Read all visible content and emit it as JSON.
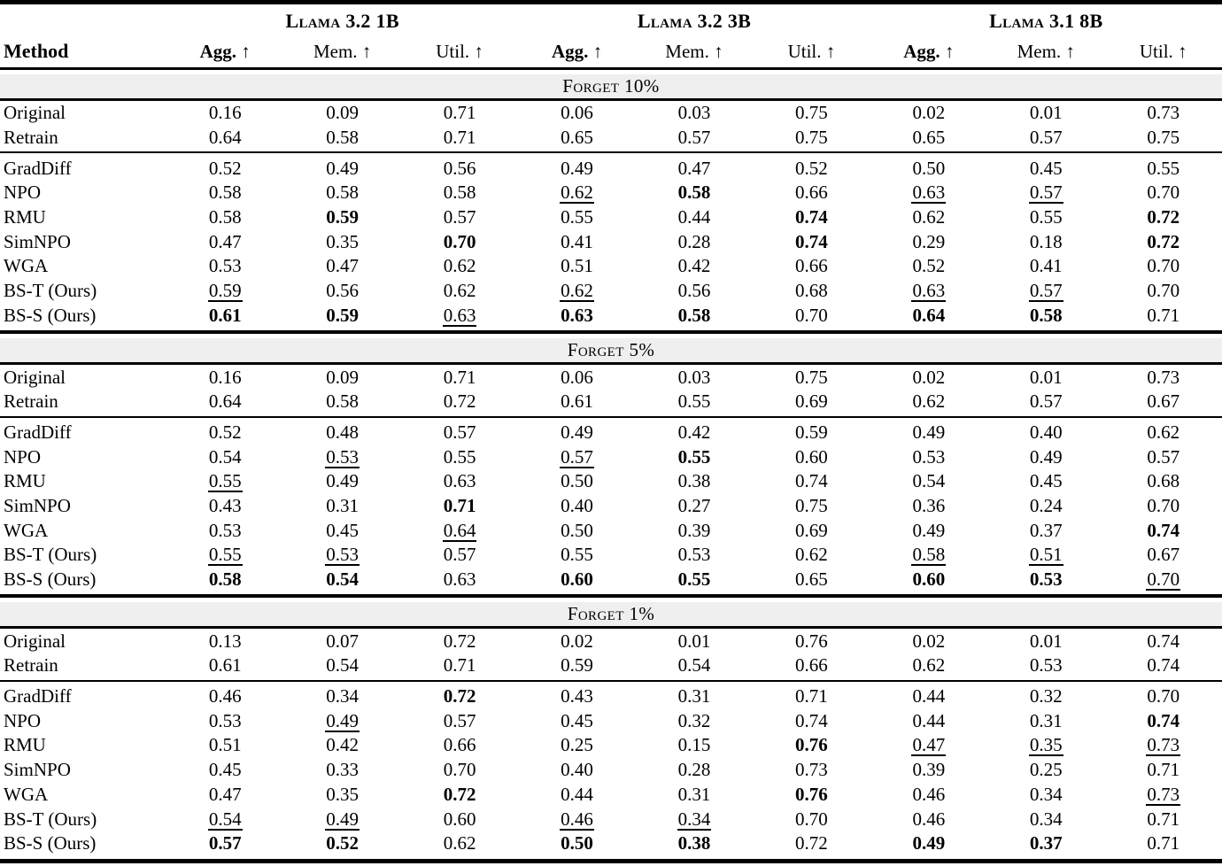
{
  "page": {
    "background": "#ffffff",
    "text_color": "#000000",
    "band_color": "#efefef"
  },
  "table": {
    "method_header": "Method",
    "groups": [
      {
        "label": "Llama 3.2 1B"
      },
      {
        "label": "Llama 3.2 3B"
      },
      {
        "label": "Llama 3.1 8B"
      }
    ],
    "metrics": [
      "Agg. ↑",
      "Mem. ↑",
      "Util. ↑"
    ],
    "metric_bold": [
      true,
      false,
      false
    ],
    "sections": [
      {
        "label": "Forget 10%",
        "reference_rows": [
          {
            "method": "Original",
            "values": [
              "0.16",
              "0.09",
              "0.71",
              "0.06",
              "0.03",
              "0.75",
              "0.02",
              "0.01",
              "0.73"
            ]
          },
          {
            "method": "Retrain",
            "values": [
              "0.64",
              "0.58",
              "0.71",
              "0.65",
              "0.57",
              "0.75",
              "0.65",
              "0.57",
              "0.75"
            ]
          }
        ],
        "method_rows": [
          {
            "method": "GradDiff",
            "values": [
              "0.52",
              "0.49",
              "0.56",
              "0.49",
              "0.47",
              "0.52",
              "0.50",
              "0.45",
              "0.55"
            ],
            "styles": [
              "",
              "",
              "",
              "",
              "",
              "",
              "",
              "",
              ""
            ]
          },
          {
            "method": "NPO",
            "values": [
              "0.58",
              "0.58",
              "0.58",
              "0.62",
              "0.58",
              "0.66",
              "0.63",
              "0.57",
              "0.70"
            ],
            "styles": [
              "",
              "",
              "",
              "u",
              "b",
              "",
              "u",
              "u",
              ""
            ]
          },
          {
            "method": "RMU",
            "values": [
              "0.58",
              "0.59",
              "0.57",
              "0.55",
              "0.44",
              "0.74",
              "0.62",
              "0.55",
              "0.72"
            ],
            "styles": [
              "",
              "b",
              "",
              "",
              "",
              "b",
              "",
              "",
              "b"
            ]
          },
          {
            "method": "SimNPO",
            "values": [
              "0.47",
              "0.35",
              "0.70",
              "0.41",
              "0.28",
              "0.74",
              "0.29",
              "0.18",
              "0.72"
            ],
            "styles": [
              "",
              "",
              "b",
              "",
              "",
              "b",
              "",
              "",
              "b"
            ]
          },
          {
            "method": "WGA",
            "values": [
              "0.53",
              "0.47",
              "0.62",
              "0.51",
              "0.42",
              "0.66",
              "0.52",
              "0.41",
              "0.70"
            ],
            "styles": [
              "",
              "",
              "",
              "",
              "",
              "",
              "",
              "",
              ""
            ]
          },
          {
            "method": "BS-T (Ours)",
            "values": [
              "0.59",
              "0.56",
              "0.62",
              "0.62",
              "0.56",
              "0.68",
              "0.63",
              "0.57",
              "0.70"
            ],
            "styles": [
              "u",
              "",
              "",
              "u",
              "",
              "",
              "u",
              "u",
              ""
            ]
          },
          {
            "method": "BS-S (Ours)",
            "values": [
              "0.61",
              "0.59",
              "0.63",
              "0.63",
              "0.58",
              "0.70",
              "0.64",
              "0.58",
              "0.71"
            ],
            "styles": [
              "b",
              "b",
              "u",
              "b",
              "b",
              "",
              "b",
              "b",
              ""
            ]
          }
        ]
      },
      {
        "label": "Forget 5%",
        "reference_rows": [
          {
            "method": "Original",
            "values": [
              "0.16",
              "0.09",
              "0.71",
              "0.06",
              "0.03",
              "0.75",
              "0.02",
              "0.01",
              "0.73"
            ]
          },
          {
            "method": "Retrain",
            "values": [
              "0.64",
              "0.58",
              "0.72",
              "0.61",
              "0.55",
              "0.69",
              "0.62",
              "0.57",
              "0.67"
            ]
          }
        ],
        "method_rows": [
          {
            "method": "GradDiff",
            "values": [
              "0.52",
              "0.48",
              "0.57",
              "0.49",
              "0.42",
              "0.59",
              "0.49",
              "0.40",
              "0.62"
            ],
            "styles": [
              "",
              "",
              "",
              "",
              "",
              "",
              "",
              "",
              ""
            ]
          },
          {
            "method": "NPO",
            "values": [
              "0.54",
              "0.53",
              "0.55",
              "0.57",
              "0.55",
              "0.60",
              "0.53",
              "0.49",
              "0.57"
            ],
            "styles": [
              "",
              "u",
              "",
              "u",
              "b",
              "",
              "",
              "",
              ""
            ]
          },
          {
            "method": "RMU",
            "values": [
              "0.55",
              "0.49",
              "0.63",
              "0.50",
              "0.38",
              "0.74",
              "0.54",
              "0.45",
              "0.68"
            ],
            "styles": [
              "u",
              "",
              "",
              "",
              "",
              "",
              "",
              "",
              ""
            ]
          },
          {
            "method": "SimNPO",
            "values": [
              "0.43",
              "0.31",
              "0.71",
              "0.40",
              "0.27",
              "0.75",
              "0.36",
              "0.24",
              "0.70"
            ],
            "styles": [
              "",
              "",
              "b",
              "",
              "",
              "",
              "",
              "",
              ""
            ]
          },
          {
            "method": "WGA",
            "values": [
              "0.53",
              "0.45",
              "0.64",
              "0.50",
              "0.39",
              "0.69",
              "0.49",
              "0.37",
              "0.74"
            ],
            "styles": [
              "",
              "",
              "u",
              "",
              "",
              "",
              "",
              "",
              "b"
            ]
          },
          {
            "method": "BS-T (Ours)",
            "values": [
              "0.55",
              "0.53",
              "0.57",
              "0.55",
              "0.53",
              "0.62",
              "0.58",
              "0.51",
              "0.67"
            ],
            "styles": [
              "u",
              "u",
              "",
              "",
              "",
              "",
              "u",
              "u",
              ""
            ]
          },
          {
            "method": "BS-S (Ours)",
            "values": [
              "0.58",
              "0.54",
              "0.63",
              "0.60",
              "0.55",
              "0.65",
              "0.60",
              "0.53",
              "0.70"
            ],
            "styles": [
              "b",
              "b",
              "",
              "b",
              "b",
              "",
              "b",
              "b",
              "u"
            ]
          }
        ]
      },
      {
        "label": "Forget 1%",
        "reference_rows": [
          {
            "method": "Original",
            "values": [
              "0.13",
              "0.07",
              "0.72",
              "0.02",
              "0.01",
              "0.76",
              "0.02",
              "0.01",
              "0.74"
            ]
          },
          {
            "method": "Retrain",
            "values": [
              "0.61",
              "0.54",
              "0.71",
              "0.59",
              "0.54",
              "0.66",
              "0.62",
              "0.53",
              "0.74"
            ]
          }
        ],
        "method_rows": [
          {
            "method": "GradDiff",
            "values": [
              "0.46",
              "0.34",
              "0.72",
              "0.43",
              "0.31",
              "0.71",
              "0.44",
              "0.32",
              "0.70"
            ],
            "styles": [
              "",
              "",
              "b",
              "",
              "",
              "",
              "",
              "",
              ""
            ]
          },
          {
            "method": "NPO",
            "values": [
              "0.53",
              "0.49",
              "0.57",
              "0.45",
              "0.32",
              "0.74",
              "0.44",
              "0.31",
              "0.74"
            ],
            "styles": [
              "",
              "u",
              "",
              "",
              "",
              "",
              "",
              "",
              "b"
            ]
          },
          {
            "method": "RMU",
            "values": [
              "0.51",
              "0.42",
              "0.66",
              "0.25",
              "0.15",
              "0.76",
              "0.47",
              "0.35",
              "0.73"
            ],
            "styles": [
              "",
              "",
              "",
              "",
              "",
              "b",
              "u",
              "u",
              "u"
            ]
          },
          {
            "method": "SimNPO",
            "values": [
              "0.45",
              "0.33",
              "0.70",
              "0.40",
              "0.28",
              "0.73",
              "0.39",
              "0.25",
              "0.71"
            ],
            "styles": [
              "",
              "",
              "",
              "",
              "",
              "",
              "",
              "",
              ""
            ]
          },
          {
            "method": "WGA",
            "values": [
              "0.47",
              "0.35",
              "0.72",
              "0.44",
              "0.31",
              "0.76",
              "0.46",
              "0.34",
              "0.73"
            ],
            "styles": [
              "",
              "",
              "b",
              "",
              "",
              "b",
              "",
              "",
              "u"
            ]
          },
          {
            "method": "BS-T (Ours)",
            "values": [
              "0.54",
              "0.49",
              "0.60",
              "0.46",
              "0.34",
              "0.70",
              "0.46",
              "0.34",
              "0.71"
            ],
            "styles": [
              "u",
              "u",
              "",
              "u",
              "u",
              "",
              "",
              "",
              ""
            ]
          },
          {
            "method": "BS-S (Ours)",
            "values": [
              "0.57",
              "0.52",
              "0.62",
              "0.50",
              "0.38",
              "0.72",
              "0.49",
              "0.37",
              "0.71"
            ],
            "styles": [
              "b",
              "b",
              "",
              "b",
              "b",
              "",
              "b",
              "b",
              ""
            ]
          }
        ]
      }
    ]
  }
}
